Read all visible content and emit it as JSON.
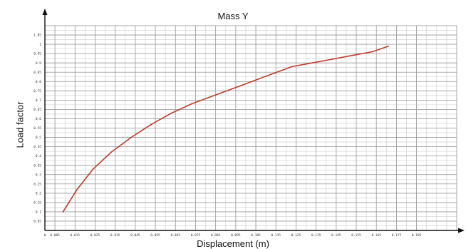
{
  "chart_data": {
    "type": "line",
    "title": "Mass Y",
    "xlabel": "Displacement (m)",
    "ylabel": "Load factor",
    "xlim": [
      0,
      0.205
    ],
    "ylim": [
      0,
      1.1
    ],
    "grid": true,
    "x_ticks": [
      0,
      0.005,
      0.015,
      0.025,
      0.035,
      0.045,
      0.055,
      0.065,
      0.075,
      0.085,
      0.095,
      0.105,
      0.115,
      0.125,
      0.135,
      0.145,
      0.155,
      0.165,
      0.175,
      0.185
    ],
    "x_tick_labels": [
      "0",
      "0.005",
      "0.015",
      "0.025",
      "0.035",
      "0.045",
      "0.055",
      "0.065",
      "0.075",
      "0.085",
      "0.095",
      "0.105",
      "0.115",
      "0.125",
      "0.135",
      "0.145",
      "0.155",
      "0.165",
      "0.175",
      "0.185"
    ],
    "y_ticks": [
      0.05,
      0.1,
      0.15,
      0.2,
      0.25,
      0.3,
      0.35,
      0.4,
      0.45,
      0.5,
      0.55,
      0.6,
      0.65,
      0.7,
      0.75,
      0.8,
      0.85,
      0.9,
      0.95,
      1.0,
      1.05
    ],
    "y_tick_labels": [
      "0.05",
      "0.1",
      "0.15",
      "0.2",
      "0.25",
      "0.3",
      "0.35",
      "0.4",
      "0.45",
      "0.5",
      "0.55",
      "0.6",
      "0.65",
      "0.7",
      "0.75",
      "0.8",
      "0.85",
      "0.9",
      "0.95",
      "1",
      "1.05"
    ],
    "series": [
      {
        "color": "#c0392b",
        "x": [
          0.009,
          0.016,
          0.024,
          0.033,
          0.043,
          0.053,
          0.063,
          0.073,
          0.083,
          0.093,
          0.103,
          0.113,
          0.123,
          0.133,
          0.143,
          0.153,
          0.163,
          0.171
        ],
        "y": [
          0.1,
          0.22,
          0.33,
          0.42,
          0.5,
          0.57,
          0.63,
          0.68,
          0.72,
          0.76,
          0.8,
          0.84,
          0.88,
          0.9,
          0.92,
          0.94,
          0.96,
          0.99
        ]
      }
    ]
  }
}
